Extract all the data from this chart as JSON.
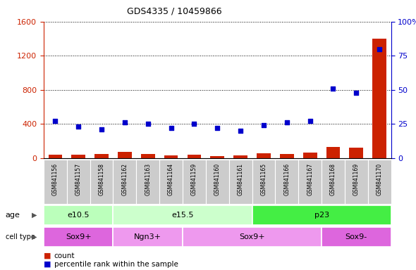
{
  "title": "GDS4335 / 10459866",
  "samples": [
    "GSM841156",
    "GSM841157",
    "GSM841158",
    "GSM841162",
    "GSM841163",
    "GSM841164",
    "GSM841159",
    "GSM841160",
    "GSM841161",
    "GSM841165",
    "GSM841166",
    "GSM841167",
    "GSM841168",
    "GSM841169",
    "GSM841170"
  ],
  "count_values": [
    40,
    35,
    45,
    70,
    50,
    30,
    35,
    25,
    30,
    55,
    50,
    60,
    130,
    120,
    1400
  ],
  "percentile_values": [
    27,
    23,
    21,
    26,
    25,
    22,
    25,
    22,
    20,
    24,
    26,
    27,
    51,
    48,
    80
  ],
  "age_groups": [
    {
      "label": "e10.5",
      "start": 0,
      "end": 3,
      "color": "#bbffbb"
    },
    {
      "label": "e15.5",
      "start": 3,
      "end": 9,
      "color": "#ccffcc"
    },
    {
      "label": "p23",
      "start": 9,
      "end": 15,
      "color": "#44ee44"
    }
  ],
  "cell_type_groups": [
    {
      "label": "Sox9+",
      "start": 0,
      "end": 3,
      "color": "#dd66dd"
    },
    {
      "label": "Ngn3+",
      "start": 3,
      "end": 6,
      "color": "#ee99ee"
    },
    {
      "label": "Sox9+",
      "start": 6,
      "end": 12,
      "color": "#ee99ee"
    },
    {
      "label": "Sox9-",
      "start": 12,
      "end": 15,
      "color": "#dd66dd"
    }
  ],
  "ylim_left": [
    0,
    1600
  ],
  "ylim_right": [
    0,
    100
  ],
  "yticks_left": [
    0,
    400,
    800,
    1200,
    1600
  ],
  "yticks_right": [
    0,
    25,
    50,
    75,
    100
  ],
  "left_color": "#cc2200",
  "right_color": "#0000cc",
  "grid_color": "#000000",
  "xticklabel_bg": "#cccccc"
}
